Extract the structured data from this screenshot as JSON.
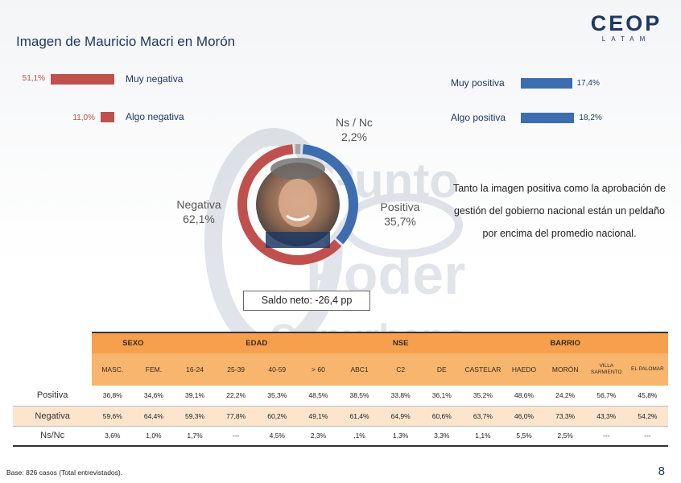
{
  "title": "Imagen de Mauricio Macri en Morón",
  "logo": {
    "main": "CEOP",
    "sub": "LATAM"
  },
  "watermark": [
    "Punto",
    "Poder",
    "Conurbano"
  ],
  "bars": {
    "negative": [
      {
        "label": "Muy negativa",
        "pct": "51,1%",
        "value": 51.1
      },
      {
        "label": "Algo negativa",
        "pct": "11,0%",
        "value": 11.0
      }
    ],
    "positive": [
      {
        "label": "Muy positiva",
        "pct": "17,4%",
        "value": 17.4
      },
      {
        "label": "Algo positiva",
        "pct": "18,2%",
        "value": 18.2
      }
    ]
  },
  "donut": {
    "negativa": {
      "label": "Negativa",
      "pct": "62,1%",
      "value": 62.1,
      "color": "#c0504d"
    },
    "positiva": {
      "label": "Positiva",
      "pct": "35,7%",
      "value": 35.7,
      "color": "#3d6daf"
    },
    "nsnc": {
      "label": "Ns / Nc",
      "pct": "2,2%",
      "value": 2.2,
      "color": "#a6a6a6"
    }
  },
  "note": "Tanto la imagen positiva como la aprobación de gestión del gobierno nacional están un peldaño por encima del promedio nacional.",
  "saldo": "Saldo neto: -26,4 pp",
  "table": {
    "groups": [
      "SEXO",
      "EDAD",
      "NSE",
      "BARRIO"
    ],
    "columns": [
      "MASC.",
      "FEM.",
      "16-24",
      "25-39",
      "40-59",
      "> 60",
      "ABC1",
      "C2",
      "DE",
      "CASTELAR",
      "HAEDO",
      "MORÓN",
      "VILLA SARMIENTO",
      "EL PALOMAR"
    ],
    "rows": [
      {
        "label": "Positiva",
        "values": [
          "36,8%",
          "34,6%",
          "39,1%",
          "22,2%",
          "35,3%",
          "48,5%",
          "38,5%",
          "33,8%",
          "36,1%",
          "35,2%",
          "48,6%",
          "24,2%",
          "56,7%",
          "45,8%"
        ]
      },
      {
        "label": "Negativa",
        "values": [
          "59,6%",
          "64,4%",
          "59,3%",
          "77,8%",
          "60,2%",
          "49,1%",
          "61,4%",
          "64,9%",
          "60,6%",
          "63,7%",
          "46,0%",
          "73,3%",
          "43,3%",
          "54,2%"
        ]
      },
      {
        "label": "Ns/Nc",
        "values": [
          "3,6%",
          "1,0%",
          "1,7%",
          "---",
          "4,5%",
          "2,3%",
          ",1%",
          "1,3%",
          "3,3%",
          "1,1%",
          "5,5%",
          "2,5%",
          "---",
          "---"
        ]
      }
    ]
  },
  "footer": "Base: 826 casos (Total entrevistados).",
  "page_number": "8"
}
